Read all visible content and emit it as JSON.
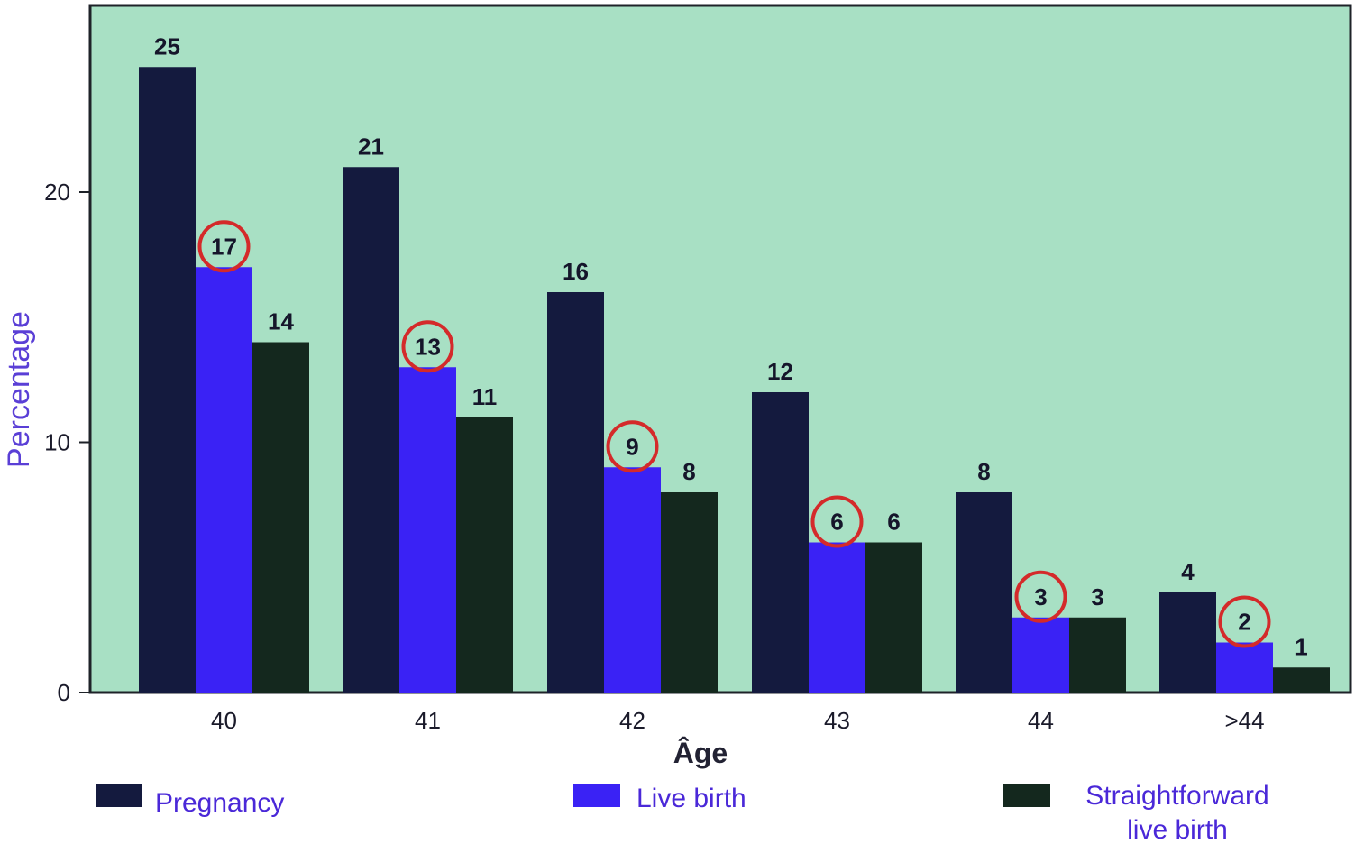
{
  "chart_data": {
    "type": "bar",
    "title": "",
    "xlabel": "Âge",
    "ylabel": "Percentage",
    "categories": [
      "40",
      "41",
      "42",
      "43",
      "44",
      ">44"
    ],
    "series": [
      {
        "name": "Pregnancy",
        "values": [
          25,
          21,
          16,
          12,
          8,
          4
        ],
        "color": "#141a3e"
      },
      {
        "name": "Live birth",
        "values": [
          17,
          13,
          9,
          6,
          3,
          2
        ],
        "color": "#3a22f5"
      },
      {
        "name": "Straightforward live birth",
        "values": [
          14,
          11,
          8,
          6,
          3,
          1
        ],
        "color": "#14281e"
      }
    ],
    "highlighted_series": "Live birth",
    "highlight_color": "#d42a2a",
    "yticks": [
      0,
      10,
      20
    ],
    "ylim": [
      0,
      27.5
    ],
    "background_color": "#a8e0c4",
    "grid": false,
    "legend_position": "bottom"
  },
  "legend": {
    "items": [
      {
        "label_lines": [
          "Pregnancy"
        ]
      },
      {
        "label_lines": [
          "Live birth"
        ]
      },
      {
        "label_lines": [
          "Straightforward",
          "live birth"
        ]
      }
    ]
  }
}
